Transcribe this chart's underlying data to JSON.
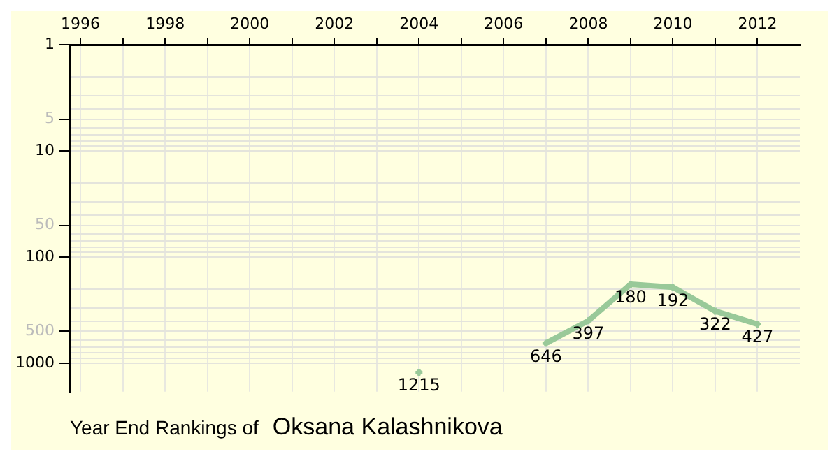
{
  "chart_data": {
    "type": "line",
    "title": "Year End Rankings of",
    "subtitle": "Oksana Kalashnikova",
    "x": [
      2004,
      2005,
      2006,
      2007,
      2008,
      2009,
      2010,
      2011,
      2012
    ],
    "series": [
      {
        "color": "#99c999",
        "values": [
          1215,
          null,
          null,
          646,
          397,
          180,
          192,
          322,
          427
        ]
      }
    ],
    "data_labels": true,
    "log": true,
    "marker": "cross",
    "grid": true,
    "legend": false,
    "xlim": [
      1995.75,
      2013
    ],
    "xticks": [
      1996,
      {
        "value": 1997,
        "label": null
      },
      1998,
      {
        "value": 1999,
        "label": null
      },
      2000,
      {
        "value": 2001,
        "label": null
      },
      2002,
      {
        "value": 2003,
        "label": null
      },
      2004,
      {
        "value": 2005,
        "label": null
      },
      2006,
      {
        "value": 2007,
        "label": null
      },
      2008,
      {
        "value": 2009,
        "label": null
      },
      2010,
      {
        "value": 2011,
        "label": null
      },
      2012
    ],
    "ylim": [
      1850,
      1
    ],
    "yticks": [
      1,
      {
        "value": 2,
        "label": null
      },
      {
        "value": 3,
        "label": null
      },
      {
        "value": 4,
        "label": null
      },
      5,
      {
        "value": 6,
        "label": null
      },
      {
        "value": 7,
        "label": null
      },
      {
        "value": 8,
        "label": null
      },
      {
        "value": 9,
        "label": null
      },
      10,
      {
        "value": 20,
        "label": null
      },
      {
        "value": 30,
        "label": null
      },
      {
        "value": 40,
        "label": null
      },
      50,
      {
        "value": 60,
        "label": null
      },
      {
        "value": 70,
        "label": null
      },
      {
        "value": 80,
        "label": null
      },
      {
        "value": 90,
        "label": null
      },
      100,
      {
        "value": 200,
        "label": null
      },
      {
        "value": 300,
        "label": null
      },
      {
        "value": 400,
        "label": null
      },
      500,
      {
        "value": 600,
        "label": null
      },
      {
        "value": 700,
        "label": null
      },
      {
        "value": 800,
        "label": null
      },
      {
        "value": 900,
        "label": null
      },
      1000
    ]
  }
}
